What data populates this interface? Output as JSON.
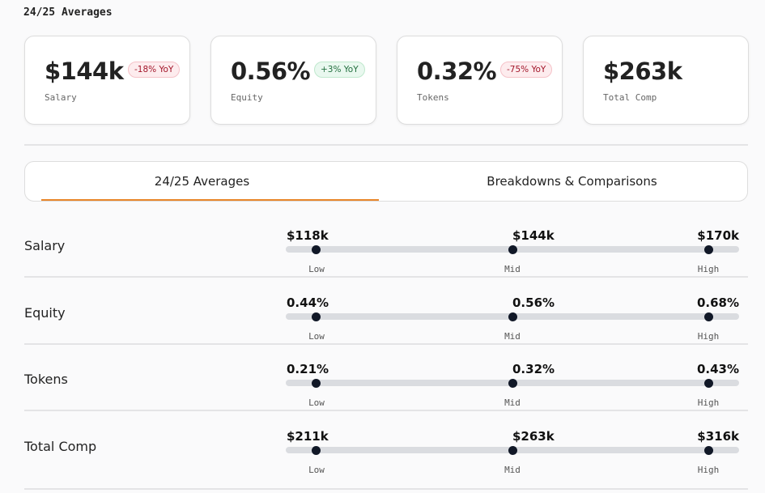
{
  "title": "24/25 Averages",
  "cards": [
    {
      "value": "$144k",
      "label": "Salary",
      "badge": "-18% YoY",
      "trend": "negative"
    },
    {
      "value": "0.56%",
      "label": "Equity",
      "badge": "+3% YoY",
      "trend": "positive"
    },
    {
      "value": "0.32%",
      "label": "Tokens",
      "badge": "-75% YoY",
      "trend": "negative"
    },
    {
      "value": "$263k",
      "label": "Total Comp"
    }
  ],
  "tabs": [
    {
      "label": "24/25 Averages",
      "active": true
    },
    {
      "label": "Breakdowns & Comparisons",
      "active": false
    }
  ],
  "range_labels": {
    "low": "Low",
    "mid": "Mid",
    "high": "High"
  },
  "rows": [
    {
      "label": "Salary",
      "low": "$118k",
      "mid": "$144k",
      "high": "$170k"
    },
    {
      "label": "Equity",
      "low": "0.44%",
      "mid": "0.56%",
      "high": "0.68%"
    },
    {
      "label": "Tokens",
      "low": "0.21%",
      "mid": "0.32%",
      "high": "0.43%"
    },
    {
      "label": "Total Comp",
      "low": "$211k",
      "mid": "$263k",
      "high": "$316k"
    }
  ],
  "colors": {
    "accent": "#e8862a",
    "negative": "#a3162a",
    "positive": "#23703f"
  }
}
